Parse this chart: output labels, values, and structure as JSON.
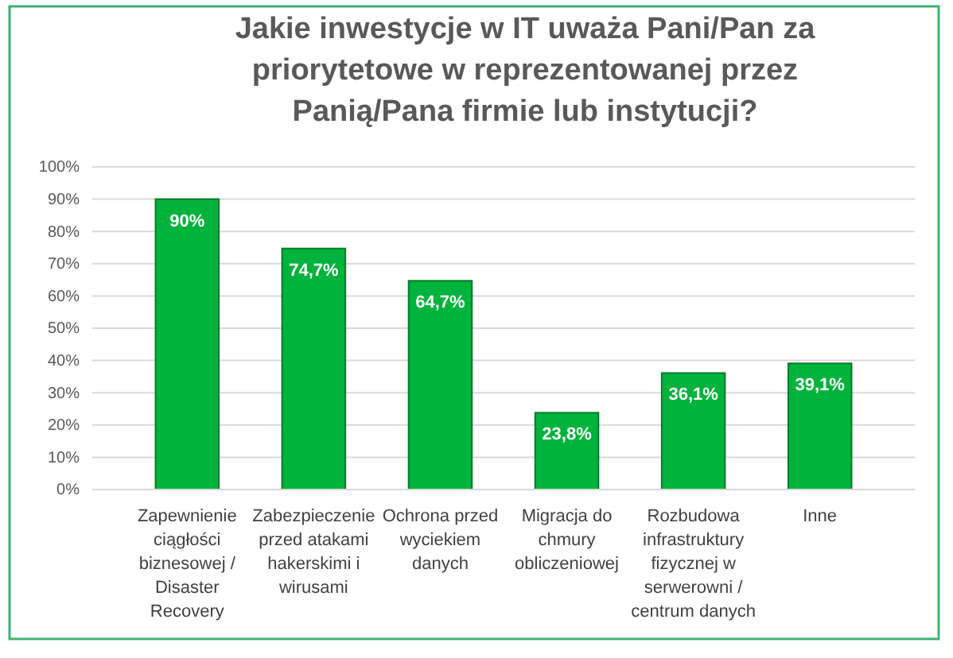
{
  "chart_data": {
    "type": "bar",
    "title": "Jakie inwestycje w IT uważa Pani/Pan za priorytetowe w reprezentowanej przez Panią/Pana firmie lub instytucji?",
    "categories": [
      "Zapewnienie ciągłości biznesowej / Disaster Recovery",
      "Zabezpieczenie przed atakami hakerskimi i wirusami",
      "Ochrona przed wyciekiem danych",
      "Migracja do chmury obliczeniowej",
      "Rozbudowa infrastruktury fizycznej w serwerowni / centrum danych",
      "Inne"
    ],
    "values": [
      90,
      74.7,
      64.7,
      23.8,
      36.1,
      39.1
    ],
    "value_labels": [
      "90%",
      "74,7%",
      "64,7%",
      "23,8%",
      "36,1%",
      "39,1%"
    ],
    "color": "#00b33c",
    "ylim": [
      0,
      100
    ],
    "yticks": [
      {
        "value": 0,
        "label": "0%"
      },
      {
        "value": 10,
        "label": "10%"
      },
      {
        "value": 20,
        "label": "20%"
      },
      {
        "value": 30,
        "label": "30%"
      },
      {
        "value": 40,
        "label": "40%"
      },
      {
        "value": 50,
        "label": "50%"
      },
      {
        "value": 60,
        "label": "60%"
      },
      {
        "value": 70,
        "label": "70%"
      },
      {
        "value": 80,
        "label": "80%"
      },
      {
        "value": 90,
        "label": "90%"
      },
      {
        "value": 100,
        "label": "100%"
      }
    ],
    "grid": "y"
  }
}
